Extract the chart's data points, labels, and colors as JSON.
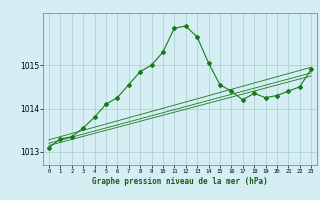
{
  "title": "Graphe pression niveau de la mer (hPa)",
  "background_color": "#d4eef4",
  "grid_color": "#aacccc",
  "line_color": "#1a7a1a",
  "x_labels": [
    "0",
    "1",
    "2",
    "3",
    "4",
    "5",
    "6",
    "7",
    "8",
    "9",
    "10",
    "11",
    "12",
    "13",
    "14",
    "15",
    "16",
    "17",
    "18",
    "19",
    "20",
    "21",
    "22",
    "23"
  ],
  "xlim": [
    -0.5,
    23.5
  ],
  "ylim": [
    1012.7,
    1016.2
  ],
  "yticks": [
    1013,
    1014,
    1015
  ],
  "main_series_x": [
    0,
    1,
    2,
    3,
    4,
    5,
    6,
    7,
    8,
    9,
    10,
    11,
    12,
    13,
    14,
    15,
    16,
    17,
    18,
    19,
    20,
    21,
    22,
    23
  ],
  "main_series_y": [
    1013.1,
    1013.3,
    1013.35,
    1013.55,
    1013.8,
    1014.1,
    1014.25,
    1014.55,
    1014.85,
    1015.0,
    1015.3,
    1015.85,
    1015.9,
    1015.65,
    1015.05,
    1014.55,
    1014.4,
    1014.2,
    1014.35,
    1014.25,
    1014.3,
    1014.4,
    1014.5,
    1014.9
  ],
  "trend1_x": [
    0,
    23
  ],
  "trend1_y": [
    1013.15,
    1014.75
  ],
  "trend2_x": [
    0,
    23
  ],
  "trend2_y": [
    1013.2,
    1014.82
  ],
  "trend3_x": [
    0,
    23
  ],
  "trend3_y": [
    1013.28,
    1014.95
  ]
}
